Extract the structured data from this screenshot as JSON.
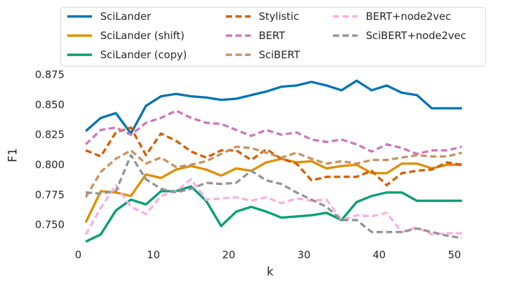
{
  "chart_data": {
    "type": "line",
    "title": "",
    "xlabel": "k",
    "ylabel": "F1",
    "xlim": [
      -1,
      52
    ],
    "ylim": [
      0.733,
      0.883
    ],
    "xticks": [
      0,
      10,
      20,
      30,
      40,
      50
    ],
    "xtick_labels": [
      "0",
      "10",
      "20",
      "30",
      "40",
      "50"
    ],
    "yticks": [
      0.75,
      0.775,
      0.8,
      0.825,
      0.85,
      0.875
    ],
    "ytick_labels": [
      "0.750",
      "0.775",
      "0.800",
      "0.825",
      "0.850",
      "0.875"
    ],
    "grid": false,
    "legend_position": "top",
    "x": [
      1,
      3,
      5,
      7,
      9,
      11,
      13,
      15,
      17,
      19,
      21,
      23,
      25,
      27,
      29,
      31,
      33,
      35,
      37,
      39,
      41,
      43,
      45,
      47,
      49,
      51
    ],
    "series": [
      {
        "name": "SciLander",
        "color": "#0173b2",
        "dash": "solid",
        "values": [
          0.828,
          0.839,
          0.843,
          0.826,
          0.849,
          0.857,
          0.859,
          0.857,
          0.856,
          0.854,
          0.855,
          0.858,
          0.861,
          0.865,
          0.866,
          0.869,
          0.866,
          0.862,
          0.87,
          0.862,
          0.866,
          0.86,
          0.858,
          0.847,
          0.847,
          0.847
        ]
      },
      {
        "name": "SciLander (shift)",
        "color": "#de8f05",
        "dash": "solid",
        "values": [
          0.752,
          0.778,
          0.777,
          0.774,
          0.792,
          0.789,
          0.796,
          0.799,
          0.796,
          0.791,
          0.797,
          0.795,
          0.802,
          0.805,
          0.802,
          0.803,
          0.797,
          0.799,
          0.8,
          0.793,
          0.793,
          0.801,
          0.801,
          0.797,
          0.8,
          0.8
        ]
      },
      {
        "name": "SciLander (copy)",
        "color": "#029e73",
        "dash": "solid",
        "values": [
          0.736,
          0.742,
          0.762,
          0.771,
          0.767,
          0.778,
          0.778,
          0.782,
          0.77,
          0.749,
          0.761,
          0.765,
          0.761,
          0.756,
          0.757,
          0.758,
          0.76,
          0.754,
          0.769,
          0.774,
          0.777,
          0.777,
          0.77,
          0.77,
          0.77,
          0.77
        ]
      },
      {
        "name": "Stylistic",
        "color": "#d55e00",
        "dash": "dashed",
        "values": [
          0.812,
          0.807,
          0.827,
          0.831,
          0.808,
          0.826,
          0.82,
          0.811,
          0.806,
          0.812,
          0.812,
          0.804,
          0.813,
          0.805,
          0.801,
          0.787,
          0.79,
          0.79,
          0.79,
          0.795,
          0.783,
          0.793,
          0.795,
          0.796,
          0.802,
          0.8
        ]
      },
      {
        "name": "BERT",
        "color": "#cc78bc",
        "dash": "dashed",
        "values": [
          0.817,
          0.829,
          0.831,
          0.825,
          0.835,
          0.839,
          0.845,
          0.839,
          0.835,
          0.834,
          0.829,
          0.824,
          0.829,
          0.825,
          0.827,
          0.821,
          0.819,
          0.821,
          0.817,
          0.811,
          0.817,
          0.814,
          0.809,
          0.812,
          0.812,
          0.815
        ]
      },
      {
        "name": "SciBERT",
        "color": "#ca9161",
        "dash": "dashed",
        "values": [
          0.773,
          0.794,
          0.805,
          0.812,
          0.801,
          0.806,
          0.798,
          0.8,
          0.803,
          0.809,
          0.815,
          0.814,
          0.81,
          0.806,
          0.81,
          0.805,
          0.801,
          0.803,
          0.801,
          0.804,
          0.804,
          0.806,
          0.808,
          0.807,
          0.807,
          0.81
        ]
      },
      {
        "name": "BERT+node2vec",
        "color": "#fbafe4",
        "dash": "dashed",
        "values": [
          0.742,
          0.764,
          0.783,
          0.765,
          0.759,
          0.774,
          0.778,
          0.788,
          0.771,
          0.772,
          0.773,
          0.77,
          0.773,
          0.768,
          0.772,
          0.77,
          0.771,
          0.754,
          0.758,
          0.757,
          0.76,
          0.744,
          0.748,
          0.742,
          0.743,
          0.743
        ]
      },
      {
        "name": "SciBERT+node2vec",
        "color": "#949494",
        "dash": "dashed",
        "values": [
          0.777,
          0.776,
          0.778,
          0.808,
          0.788,
          0.78,
          0.777,
          0.78,
          0.785,
          0.784,
          0.785,
          0.795,
          0.787,
          0.784,
          0.777,
          0.771,
          0.765,
          0.754,
          0.754,
          0.744,
          0.744,
          0.744,
          0.747,
          0.744,
          0.741,
          0.739
        ]
      }
    ]
  }
}
